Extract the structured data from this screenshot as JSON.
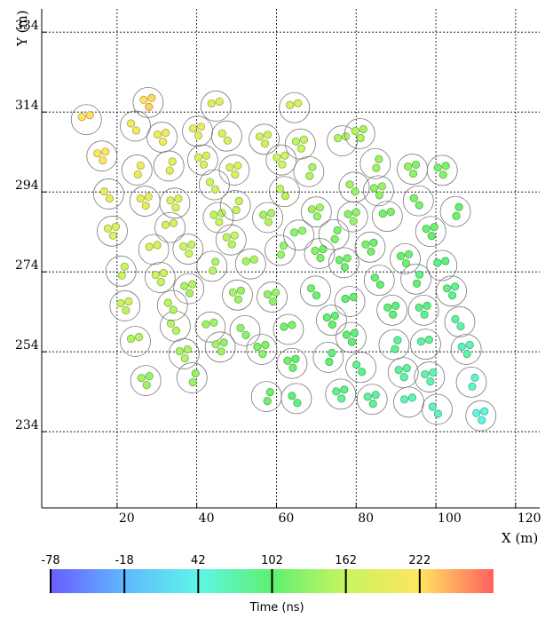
{
  "chart_data": {
    "type": "scatter",
    "title": "",
    "xlabel": "X (m)",
    "ylabel": "Y (m)",
    "xlim": [
      0,
      120
    ],
    "ylim": [
      210,
      334
    ],
    "xticks": [
      20,
      40,
      60,
      80,
      100,
      120
    ],
    "xtick_labels": [
      "20",
      "40",
      "60",
      "80",
      "100",
      "120"
    ],
    "yticks": [
      234,
      254,
      274,
      294,
      314,
      334
    ],
    "ytick_labels": [
      "234",
      "254",
      "274",
      "294",
      "314",
      "334"
    ],
    "grid": true,
    "colorbar": {
      "title": "Time (ns)",
      "min": -78,
      "max": 282,
      "ticks": [
        -78,
        -18,
        42,
        102,
        162,
        222
      ],
      "tick_labels": [
        "-78",
        "-18",
        "42",
        "102",
        "162",
        "222"
      ]
    },
    "stations": [
      {
        "x": 12.3,
        "y": 312.1,
        "t": 225
      },
      {
        "x": 16.2,
        "y": 303.0,
        "t": 218
      },
      {
        "x": 17.9,
        "y": 293.5,
        "t": 196
      },
      {
        "x": 18.8,
        "y": 284.2,
        "t": 182
      },
      {
        "x": 21.0,
        "y": 274.2,
        "t": 167
      },
      {
        "x": 22.0,
        "y": 265.5,
        "t": 160
      },
      {
        "x": 24.6,
        "y": 256.6,
        "t": 154
      },
      {
        "x": 27.2,
        "y": 246.8,
        "t": 139
      },
      {
        "x": 24.6,
        "y": 310.5,
        "t": 212
      },
      {
        "x": 27.8,
        "y": 316.4,
        "t": 228
      },
      {
        "x": 25.0,
        "y": 299.5,
        "t": 205
      },
      {
        "x": 27.0,
        "y": 291.7,
        "t": 190
      },
      {
        "x": 29.2,
        "y": 279.6,
        "t": 178
      },
      {
        "x": 30.8,
        "y": 272.6,
        "t": 166
      },
      {
        "x": 34.6,
        "y": 260.4,
        "t": 154
      },
      {
        "x": 31.3,
        "y": 307.7,
        "t": 200
      },
      {
        "x": 33.0,
        "y": 300.5,
        "t": 193
      },
      {
        "x": 34.5,
        "y": 291.2,
        "t": 182
      },
      {
        "x": 33.3,
        "y": 285.1,
        "t": 174
      },
      {
        "x": 37.8,
        "y": 279.7,
        "t": 164
      },
      {
        "x": 33.9,
        "y": 265.6,
        "t": 155
      },
      {
        "x": 36.8,
        "y": 253.5,
        "t": 146
      },
      {
        "x": 38.8,
        "y": 247.5,
        "t": 135
      },
      {
        "x": 40.2,
        "y": 309.2,
        "t": 192
      },
      {
        "x": 44.8,
        "y": 315.5,
        "t": 188
      },
      {
        "x": 41.5,
        "y": 302.0,
        "t": 184
      },
      {
        "x": 44.4,
        "y": 295.8,
        "t": 171
      },
      {
        "x": 45.4,
        "y": 287.6,
        "t": 160
      },
      {
        "x": 43.8,
        "y": 275.4,
        "t": 151
      },
      {
        "x": 38.0,
        "y": 269.8,
        "t": 146
      },
      {
        "x": 43.4,
        "y": 260.2,
        "t": 140
      },
      {
        "x": 45.9,
        "y": 255.2,
        "t": 135
      },
      {
        "x": 47.5,
        "y": 308.0,
        "t": 184
      },
      {
        "x": 49.4,
        "y": 299.5,
        "t": 177
      },
      {
        "x": 49.7,
        "y": 290.6,
        "t": 166
      },
      {
        "x": 48.6,
        "y": 282.0,
        "t": 156
      },
      {
        "x": 53.5,
        "y": 276.0,
        "t": 146
      },
      {
        "x": 50.2,
        "y": 268.2,
        "t": 138
      },
      {
        "x": 52.1,
        "y": 259.3,
        "t": 130
      },
      {
        "x": 56.3,
        "y": 254.6,
        "t": 124
      },
      {
        "x": 57.5,
        "y": 242.8,
        "t": 111
      },
      {
        "x": 56.9,
        "y": 307.2,
        "t": 172
      },
      {
        "x": 64.5,
        "y": 315.1,
        "t": 180
      },
      {
        "x": 61.2,
        "y": 302.0,
        "t": 166
      },
      {
        "x": 62.0,
        "y": 294.1,
        "t": 157
      },
      {
        "x": 57.8,
        "y": 287.6,
        "t": 145
      },
      {
        "x": 60.9,
        "y": 279.4,
        "t": 137
      },
      {
        "x": 58.9,
        "y": 267.7,
        "t": 130
      },
      {
        "x": 63.0,
        "y": 259.6,
        "t": 119
      },
      {
        "x": 63.9,
        "y": 251.1,
        "t": 109
      },
      {
        "x": 65.0,
        "y": 242.3,
        "t": 98
      },
      {
        "x": 66.0,
        "y": 306.0,
        "t": 160
      },
      {
        "x": 68.1,
        "y": 299.1,
        "t": 149
      },
      {
        "x": 70.0,
        "y": 289.0,
        "t": 138
      },
      {
        "x": 65.6,
        "y": 283.2,
        "t": 131
      },
      {
        "x": 70.8,
        "y": 278.6,
        "t": 120
      },
      {
        "x": 69.8,
        "y": 269.2,
        "t": 114
      },
      {
        "x": 73.8,
        "y": 261.9,
        "t": 104
      },
      {
        "x": 73.0,
        "y": 252.6,
        "t": 98
      },
      {
        "x": 76.1,
        "y": 243.4,
        "t": 87
      },
      {
        "x": 76.5,
        "y": 306.8,
        "t": 150
      },
      {
        "x": 80.9,
        "y": 308.6,
        "t": 146
      },
      {
        "x": 79.5,
        "y": 295.2,
        "t": 139
      },
      {
        "x": 79.1,
        "y": 287.8,
        "t": 130
      },
      {
        "x": 74.4,
        "y": 283.3,
        "t": 122
      },
      {
        "x": 76.9,
        "y": 276.3,
        "t": 112
      },
      {
        "x": 78.4,
        "y": 266.6,
        "t": 106
      },
      {
        "x": 78.7,
        "y": 257.6,
        "t": 98
      },
      {
        "x": 81.2,
        "y": 250.1,
        "t": 88
      },
      {
        "x": 84.0,
        "y": 242.1,
        "t": 79
      },
      {
        "x": 84.8,
        "y": 301.1,
        "t": 139
      },
      {
        "x": 85.6,
        "y": 294.3,
        "t": 131
      },
      {
        "x": 87.8,
        "y": 287.9,
        "t": 119
      },
      {
        "x": 83.5,
        "y": 280.2,
        "t": 114
      },
      {
        "x": 85.8,
        "y": 271.9,
        "t": 107
      },
      {
        "x": 89.0,
        "y": 264.4,
        "t": 98
      },
      {
        "x": 89.5,
        "y": 255.8,
        "t": 88
      },
      {
        "x": 91.8,
        "y": 248.8,
        "t": 78
      },
      {
        "x": 93.2,
        "y": 241.4,
        "t": 68
      },
      {
        "x": 94.1,
        "y": 299.7,
        "t": 127
      },
      {
        "x": 95.6,
        "y": 291.8,
        "t": 119
      },
      {
        "x": 92.3,
        "y": 277.3,
        "t": 108
      },
      {
        "x": 95.0,
        "y": 272.2,
        "t": 100
      },
      {
        "x": 96.9,
        "y": 264.4,
        "t": 90
      },
      {
        "x": 97.4,
        "y": 255.9,
        "t": 81
      },
      {
        "x": 98.4,
        "y": 247.7,
        "t": 70
      },
      {
        "x": 100.3,
        "y": 239.6,
        "t": 63
      },
      {
        "x": 101.6,
        "y": 299.4,
        "t": 118
      },
      {
        "x": 104.9,
        "y": 289.1,
        "t": 110
      },
      {
        "x": 98.7,
        "y": 284.1,
        "t": 108
      },
      {
        "x": 101.5,
        "y": 275.6,
        "t": 97
      },
      {
        "x": 103.9,
        "y": 269.2,
        "t": 87
      },
      {
        "x": 106.0,
        "y": 261.5,
        "t": 78
      },
      {
        "x": 107.6,
        "y": 254.6,
        "t": 67
      },
      {
        "x": 108.9,
        "y": 246.4,
        "t": 58
      },
      {
        "x": 111.3,
        "y": 238.0,
        "t": 47
      }
    ]
  }
}
